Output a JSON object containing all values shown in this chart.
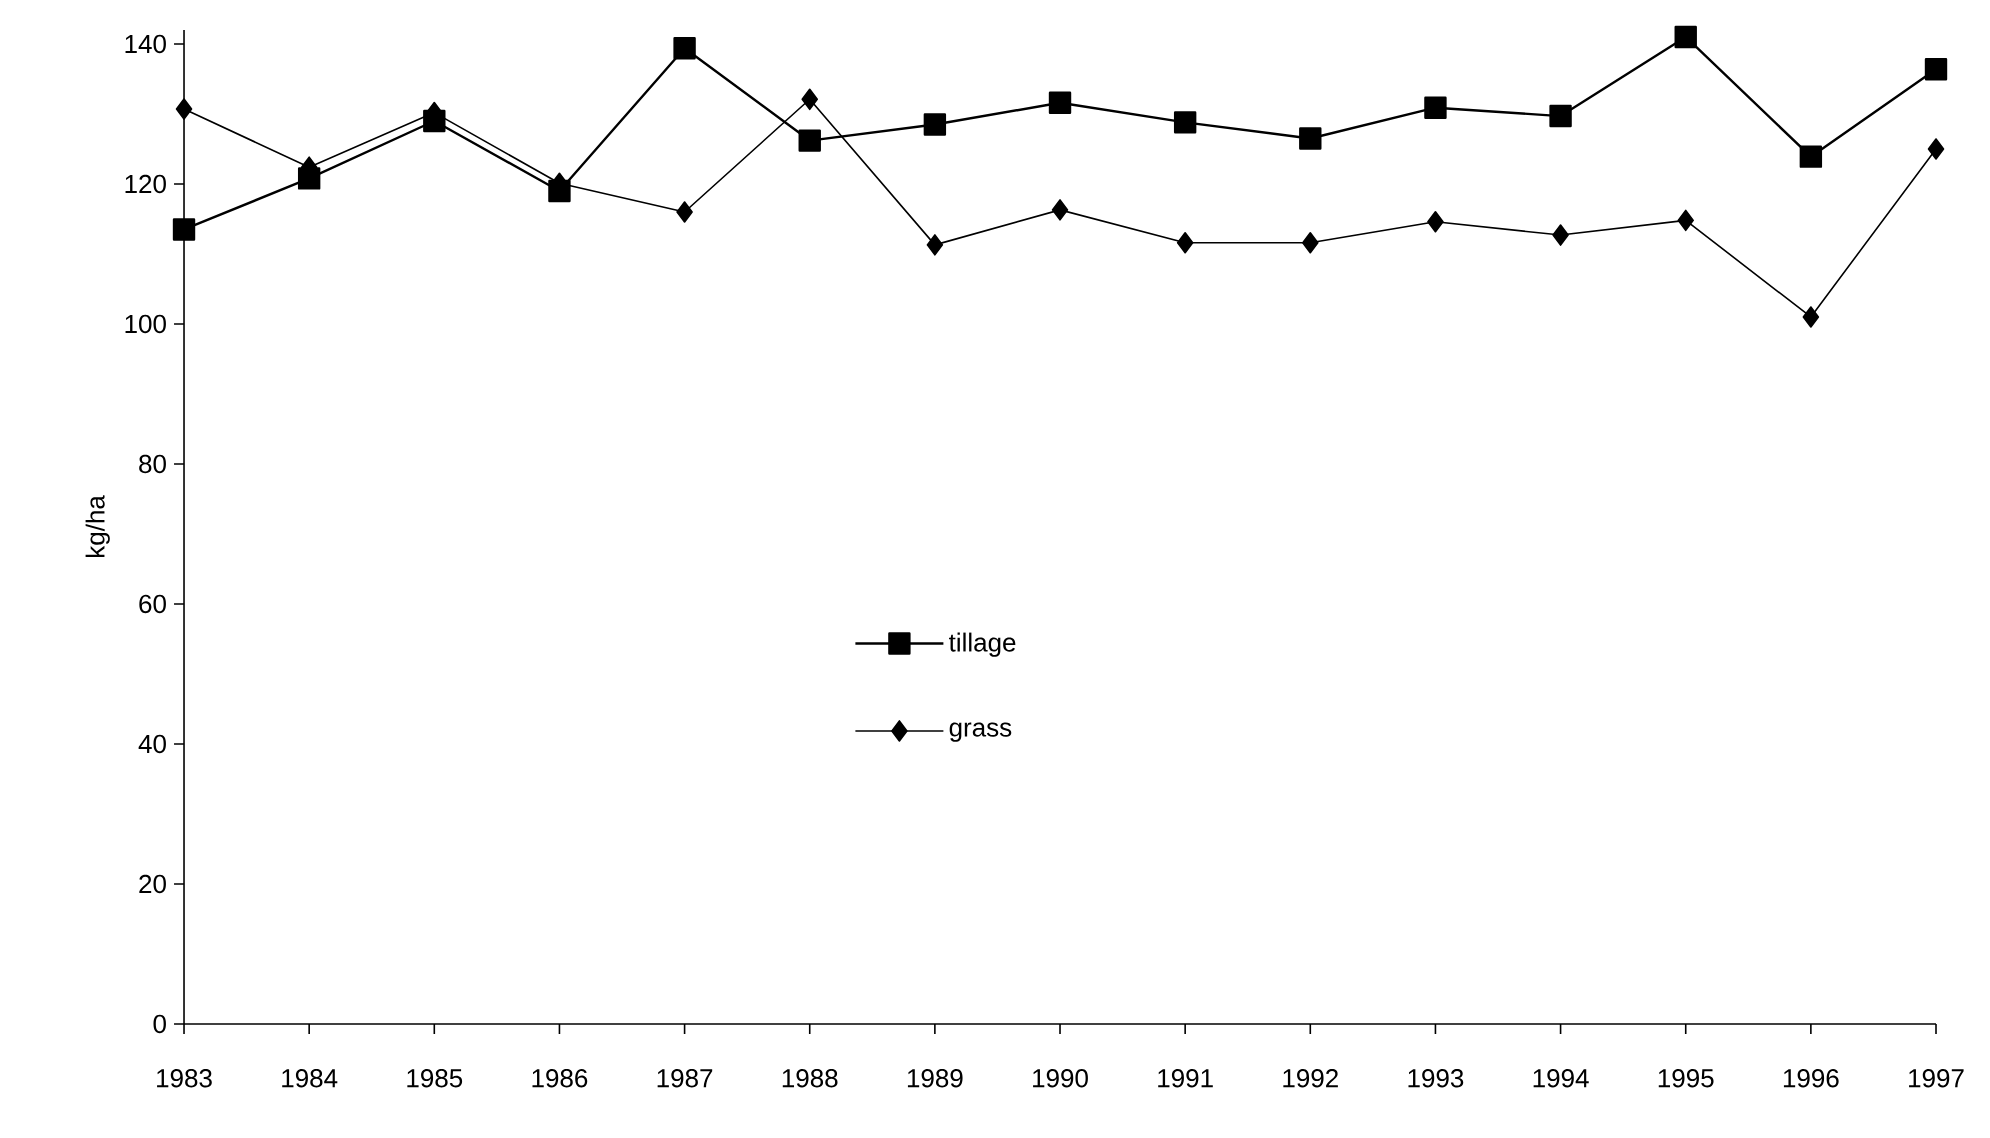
{
  "chart_data": {
    "type": "line",
    "ylabel": "kg/ha",
    "categories": [
      "1983",
      "1984",
      "1985",
      "1986",
      "1987",
      "1988",
      "1989",
      "1990",
      "1991",
      "1992",
      "1993",
      "1994",
      "1995",
      "1996",
      "1997"
    ],
    "series": [
      {
        "name": "tillage",
        "color": "#000000",
        "marker": "square",
        "line_style": "solid",
        "values": [
          113.5,
          120.8,
          129,
          119,
          139.4,
          126.2,
          128.5,
          131.6,
          128.8,
          126.5,
          130.9,
          129.7,
          141,
          123.9,
          136.4
        ]
      },
      {
        "name": "grass",
        "color": "#000000",
        "marker": "diamond",
        "line_style": "solid",
        "values": [
          130.7,
          122.4,
          130.2,
          120.1,
          116,
          132.1,
          111.3,
          116.3,
          111.6,
          111.6,
          114.6,
          112.7,
          114.8,
          101,
          125
        ]
      }
    ],
    "ylim": [
      0,
      142
    ],
    "yticks": [
      0,
      20,
      40,
      60,
      80,
      100,
      120,
      140
    ],
    "grid": false,
    "legend": "center"
  }
}
